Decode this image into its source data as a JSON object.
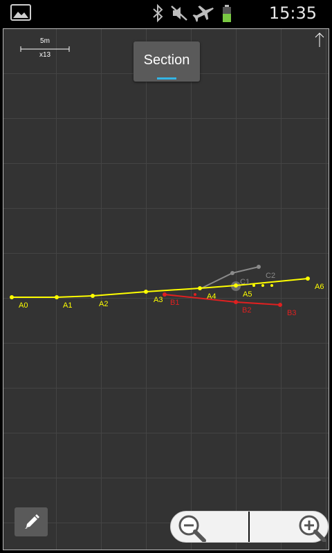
{
  "status_bar": {
    "time": "15:35",
    "icons": [
      "gallery-icon",
      "bluetooth-icon",
      "mute-icon",
      "airplane-icon",
      "battery-icon"
    ],
    "colors": {
      "battery": "#7ac943"
    }
  },
  "toolbar": {
    "section_label": "Section",
    "edit_button": "pencil-icon",
    "zoom_out": "zoom-out-icon",
    "zoom_in": "zoom-in-icon"
  },
  "scale_bar": {
    "distance": "5m",
    "zoom": "x13"
  },
  "north_indicator": "north-arrow-icon",
  "survey": {
    "colors": {
      "A": "#ffff00",
      "B": "#e02020",
      "C": "#8a8a8a",
      "grid": "#444444"
    },
    "stations": [
      {
        "label": "A0",
        "series": "A"
      },
      {
        "label": "A1",
        "series": "A"
      },
      {
        "label": "A2",
        "series": "A"
      },
      {
        "label": "A3",
        "series": "A"
      },
      {
        "label": "A4",
        "series": "A"
      },
      {
        "label": "A5",
        "series": "A"
      },
      {
        "label": "A6",
        "series": "A"
      },
      {
        "label": "B1",
        "series": "B"
      },
      {
        "label": "B2",
        "series": "B"
      },
      {
        "label": "B3",
        "series": "B"
      },
      {
        "label": "C1",
        "series": "C"
      },
      {
        "label": "C2",
        "series": "C"
      }
    ]
  }
}
